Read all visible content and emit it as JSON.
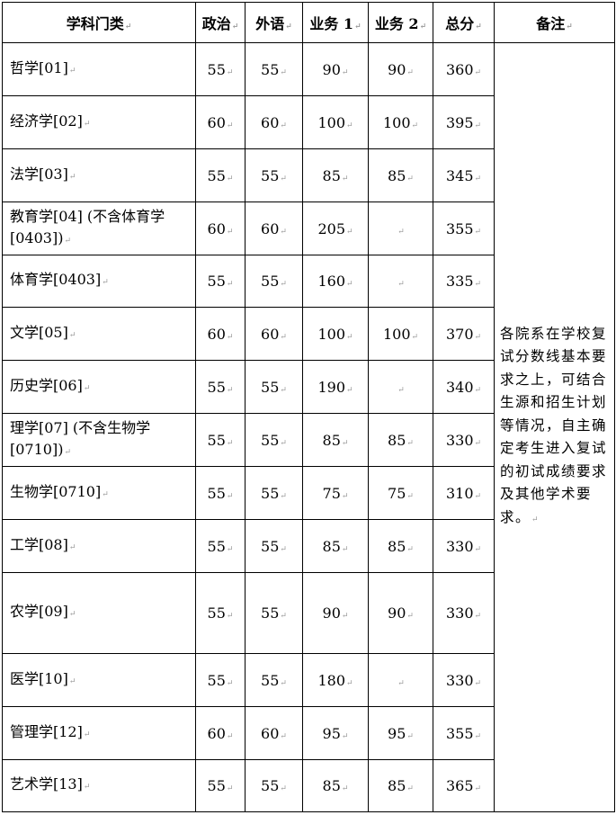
{
  "headers": [
    "学科门类",
    "政治",
    "外语",
    "业务 1",
    "业务 2",
    "总分",
    "备注"
  ],
  "rows": [
    {
      "name": "哲学[01]",
      "politics": "55",
      "language": "55",
      "subject1": "90",
      "subject2": "90",
      "total": "360"
    },
    {
      "name": "经济学[02]",
      "politics": "60",
      "language": "60",
      "subject1": "100",
      "subject2": "100",
      "total": "395"
    },
    {
      "name": "法学[03]",
      "politics": "55",
      "language": "55",
      "subject1": "85",
      "subject2": "85",
      "total": "345"
    },
    {
      "name": "教育学[04] (不含体育学[0403])",
      "politics": "60",
      "language": "60",
      "subject1": "205",
      "subject2": "",
      "total": "355"
    },
    {
      "name": "体育学[0403]",
      "politics": "55",
      "language": "55",
      "subject1": "160",
      "subject2": "",
      "total": "335"
    },
    {
      "name": "文学[05]",
      "politics": "60",
      "language": "60",
      "subject1": "100",
      "subject2": "100",
      "total": "370"
    },
    {
      "name": "历史学[06]",
      "politics": "55",
      "language": "55",
      "subject1": "190",
      "subject2": "",
      "total": "340"
    },
    {
      "name": "理学[07] (不含生物学[0710])",
      "politics": "55",
      "language": "55",
      "subject1": "85",
      "subject2": "85",
      "total": "330"
    },
    {
      "name": "生物学[0710]",
      "politics": "55",
      "language": "55",
      "subject1": "75",
      "subject2": "75",
      "total": "310"
    },
    {
      "name": "工学[08]",
      "politics": "55",
      "language": "55",
      "subject1": "85",
      "subject2": "85",
      "total": "330"
    },
    {
      "name": "农学[09]",
      "politics": "55",
      "language": "55",
      "subject1": "90",
      "subject2": "90",
      "total": "330"
    },
    {
      "name": "医学[10]",
      "politics": "55",
      "language": "55",
      "subject1": "180",
      "subject2": "",
      "total": "330"
    },
    {
      "name": "管理学[12]",
      "politics": "60",
      "language": "60",
      "subject1": "95",
      "subject2": "95",
      "total": "355"
    },
    {
      "name": "艺术学[13]",
      "politics": "55",
      "language": "55",
      "subject1": "85",
      "subject2": "85",
      "total": "365"
    }
  ],
  "note": "各院系在学校复试分数线基本要求之上，可结合生源和招生计划等情况，自主确定考生进入复试的初试成绩要求及其他学术要求。"
}
